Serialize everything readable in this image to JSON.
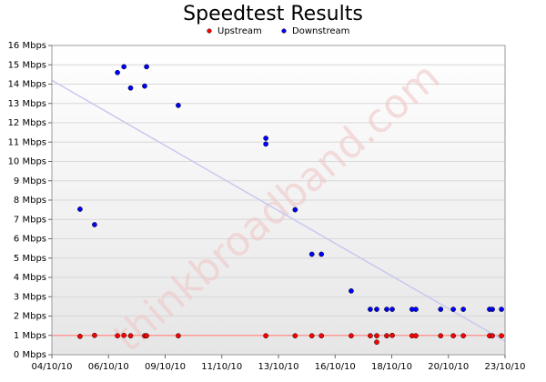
{
  "chart_data": {
    "type": "scatter",
    "title": "Speedtest Results",
    "watermark": "thinkbroadband.com",
    "xlim": [
      0,
      19
    ],
    "ylim": [
      0,
      16
    ],
    "xticks": [
      {
        "value": 0,
        "label": "04/10/10"
      },
      {
        "value": 2.375,
        "label": "06/10/10"
      },
      {
        "value": 4.75,
        "label": "09/10/10"
      },
      {
        "value": 7.125,
        "label": "11/10/10"
      },
      {
        "value": 9.5,
        "label": "13/10/10"
      },
      {
        "value": 11.875,
        "label": "16/10/10"
      },
      {
        "value": 14.25,
        "label": "18/10/10"
      },
      {
        "value": 16.625,
        "label": "20/10/10"
      },
      {
        "value": 19,
        "label": "23/10/10"
      }
    ],
    "yticks": [
      {
        "value": 0,
        "label": "0 Mbps"
      },
      {
        "value": 1,
        "label": "1 Mbps"
      },
      {
        "value": 2,
        "label": "2 Mbps"
      },
      {
        "value": 3,
        "label": "3 Mbps"
      },
      {
        "value": 4,
        "label": "4 Mbps"
      },
      {
        "value": 5,
        "label": "5 Mbps"
      },
      {
        "value": 6,
        "label": "6 Mbps"
      },
      {
        "value": 7,
        "label": "7 Mbps"
      },
      {
        "value": 8,
        "label": "8 Mbps"
      },
      {
        "value": 9,
        "label": "9 Mbps"
      },
      {
        "value": 10,
        "label": "10 Mbps"
      },
      {
        "value": 11,
        "label": "11 Mbps"
      },
      {
        "value": 12,
        "label": "12 Mbps"
      },
      {
        "value": 13,
        "label": "13 Mbps"
      },
      {
        "value": 14,
        "label": "14 Mbps"
      },
      {
        "value": 15,
        "label": "15 Mbps"
      },
      {
        "value": 16,
        "label": "16 Mbps"
      }
    ],
    "grid": true,
    "series": [
      {
        "name": "Upstream",
        "color": "#ff0000",
        "trend_color": "#ff9999",
        "trend": [
          1.0,
          1.0
        ],
        "x": [
          1.18,
          1.79,
          2.75,
          3.02,
          3.3,
          3.89,
          3.97,
          5.3,
          8.97,
          10.2,
          10.9,
          11.3,
          12.55,
          13.35,
          13.62,
          13.62,
          14.04,
          14.27,
          15.1,
          15.26,
          16.3,
          16.83,
          17.25,
          18.35,
          18.47,
          18.85
        ],
        "values": [
          0.95,
          1.0,
          0.98,
          1.0,
          0.98,
          0.98,
          0.98,
          0.98,
          0.98,
          0.98,
          0.98,
          0.98,
          0.98,
          0.98,
          0.98,
          0.65,
          0.98,
          1.0,
          0.98,
          0.98,
          0.98,
          0.98,
          0.98,
          0.98,
          0.98,
          0.98
        ]
      },
      {
        "name": "Downstream",
        "color": "#0000ff",
        "trend_color": "#c8c8f0",
        "trend": [
          14.2,
          0.7
        ],
        "x": [
          1.18,
          1.79,
          2.75,
          3.02,
          3.3,
          3.89,
          3.97,
          5.3,
          8.97,
          8.97,
          10.2,
          10.9,
          11.3,
          12.55,
          13.35,
          13.62,
          14.04,
          14.27,
          15.1,
          15.26,
          16.3,
          16.83,
          17.25,
          18.35,
          18.47,
          18.85
        ],
        "values": [
          7.53,
          6.73,
          14.6,
          14.9,
          13.8,
          13.9,
          14.9,
          12.9,
          10.9,
          11.2,
          7.5,
          5.2,
          5.2,
          3.3,
          2.35,
          2.35,
          2.35,
          2.35,
          2.35,
          2.35,
          2.35,
          2.35,
          2.35,
          2.35,
          2.35,
          2.35
        ]
      }
    ]
  }
}
